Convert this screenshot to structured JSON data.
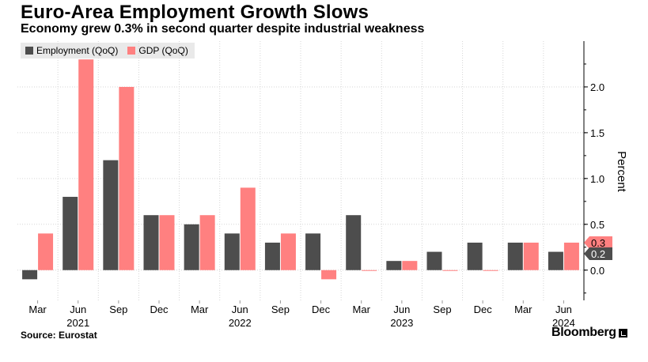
{
  "chart_data": {
    "type": "bar",
    "title": "Euro-Area Employment Growth Slows",
    "subtitle": "Economy grew 0.3% in second quarter despite industrial weakness",
    "categories": [
      "Mar",
      "Jun",
      "Sep",
      "Dec",
      "Mar",
      "Jun",
      "Sep",
      "Dec",
      "Mar",
      "Jun",
      "Sep",
      "Dec",
      "Mar",
      "Jun"
    ],
    "year_labels": [
      {
        "label": "2021",
        "category_index": 1
      },
      {
        "label": "2022",
        "category_index": 5
      },
      {
        "label": "2023",
        "category_index": 9
      },
      {
        "label": "2024",
        "category_index": 13
      }
    ],
    "series": [
      {
        "name": "Employment (QoQ)",
        "color": "#4d4d4d",
        "values": [
          -0.1,
          0.8,
          1.2,
          0.6,
          0.5,
          0.4,
          0.3,
          0.4,
          0.6,
          0.1,
          0.2,
          0.3,
          0.3,
          0.2
        ]
      },
      {
        "name": "GDP (QoQ)",
        "color": "#ff8080",
        "values": [
          0.4,
          2.3,
          2.0,
          0.6,
          0.6,
          0.9,
          0.4,
          -0.1,
          0.0,
          0.1,
          0.0,
          0.0,
          0.3,
          0.3
        ]
      }
    ],
    "ylabel": "Percent",
    "ylim": [
      -0.33,
      2.5
    ],
    "yticks": [
      0.0,
      0.5,
      1.0,
      1.5,
      2.0
    ],
    "ytick_labels": [
      "0.0",
      "0.5",
      "1.0",
      "1.5",
      "2.0"
    ],
    "last_value_labels": [
      {
        "series": "GDP (QoQ)",
        "text": "0.3"
      },
      {
        "series": "Employment (QoQ)",
        "text": "0.2"
      }
    ],
    "grid": true,
    "legend_position": "top-left"
  },
  "source": "Source: Eurostat",
  "brand": "Bloomberg"
}
